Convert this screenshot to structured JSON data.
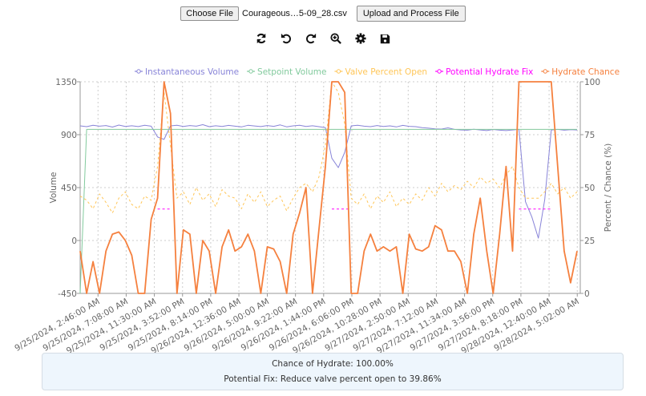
{
  "upload": {
    "choose_file_label": "Choose File",
    "file_name": "Courageous…5-09_28.csv",
    "upload_button_label": "Upload and Process File"
  },
  "toolbar": {
    "icons": [
      "refresh-icon",
      "undo-icon",
      "redo-icon",
      "zoom-in-icon",
      "settings-icon",
      "save-icon"
    ]
  },
  "info": {
    "chance_text": "Chance of Hydrate: 100.00%",
    "fix_text": "Potential Fix: Reduce valve percent open to 39.86%"
  },
  "chart_data": {
    "type": "line",
    "ylabel": "Volume",
    "y2label": "Percent / Chance (%)",
    "ylim": [
      -450,
      1350
    ],
    "y2lim": [
      0,
      100
    ],
    "yticks": [
      "1350",
      "900",
      "450",
      "0",
      "-450"
    ],
    "y2ticks": [
      "100",
      "75",
      "50",
      "25",
      "0"
    ],
    "xlim": [
      "2024-09-25T00:00",
      "2024-09-28T05:30"
    ],
    "xticks": [
      "9/25/2024, 2:46:00 AM",
      "9/25/2024, 7:08:00 AM",
      "9/25/2024, 11:30:00 AM",
      "9/25/2024, 3:52:00 PM",
      "9/25/2024, 8:14:00 PM",
      "9/26/2024, 12:36:00 AM",
      "9/26/2024, 5:00:00 AM",
      "9/26/2024, 9:22:00 AM",
      "9/26/2024, 1:44:00 PM",
      "9/26/2024, 6:06:00 PM",
      "9/26/2024, 10:28:00 PM",
      "9/27/2024, 2:50:00 AM",
      "9/27/2024, 7:12:00 AM",
      "9/27/2024, 11:34:00 AM",
      "9/27/2024, 3:56:00 PM",
      "9/27/2024, 8:18:00 PM",
      "9/28/2024, 12:40:00 AM",
      "9/28/2024, 5:02:00 AM"
    ],
    "grid": true,
    "legend_position": "top",
    "x": [
      "2024-09-25T00:00",
      "2024-09-25T01:00",
      "2024-09-25T02:00",
      "2024-09-25T03:00",
      "2024-09-25T04:00",
      "2024-09-25T05:00",
      "2024-09-25T06:00",
      "2024-09-25T07:00",
      "2024-09-25T08:00",
      "2024-09-25T09:00",
      "2024-09-25T10:00",
      "2024-09-25T11:00",
      "2024-09-25T12:00",
      "2024-09-25T13:00",
      "2024-09-25T14:00",
      "2024-09-25T15:00",
      "2024-09-25T16:00",
      "2024-09-25T17:00",
      "2024-09-25T18:00",
      "2024-09-25T19:00",
      "2024-09-25T20:00",
      "2024-09-25T21:00",
      "2024-09-25T22:00",
      "2024-09-25T23:00",
      "2024-09-26T00:00",
      "2024-09-26T01:00",
      "2024-09-26T02:00",
      "2024-09-26T03:00",
      "2024-09-26T04:00",
      "2024-09-26T05:00",
      "2024-09-26T06:00",
      "2024-09-26T07:00",
      "2024-09-26T08:00",
      "2024-09-26T09:00",
      "2024-09-26T10:00",
      "2024-09-26T11:00",
      "2024-09-26T12:00",
      "2024-09-26T13:00",
      "2024-09-26T14:00",
      "2024-09-26T15:00",
      "2024-09-26T16:00",
      "2024-09-26T17:00",
      "2024-09-26T18:00",
      "2024-09-26T19:00",
      "2024-09-26T20:00",
      "2024-09-26T21:00",
      "2024-09-26T22:00",
      "2024-09-26T23:00",
      "2024-09-27T00:00",
      "2024-09-27T01:00",
      "2024-09-27T02:00",
      "2024-09-27T03:00",
      "2024-09-27T04:00",
      "2024-09-27T05:00",
      "2024-09-27T06:00",
      "2024-09-27T07:00",
      "2024-09-27T08:00",
      "2024-09-27T09:00",
      "2024-09-27T10:00",
      "2024-09-27T11:00",
      "2024-09-27T12:00",
      "2024-09-27T13:00",
      "2024-09-27T14:00",
      "2024-09-27T15:00",
      "2024-09-27T16:00",
      "2024-09-27T17:00",
      "2024-09-27T18:00",
      "2024-09-27T19:00",
      "2024-09-27T20:00",
      "2024-09-27T21:00",
      "2024-09-27T22:00",
      "2024-09-27T23:00",
      "2024-09-28T00:00",
      "2024-09-28T01:00",
      "2024-09-28T02:00",
      "2024-09-28T03:00",
      "2024-09-28T04:00",
      "2024-09-28T05:00"
    ],
    "series": [
      {
        "name": "Instantaneous Volume",
        "axis": "left",
        "color": "#8884d8",
        "dash": false,
        "values": [
          975,
          968,
          980,
          972,
          978,
          965,
          982,
          970,
          976,
          969,
          980,
          972,
          880,
          860,
          975,
          980,
          970,
          978,
          972,
          985,
          968,
          976,
          970,
          979,
          972,
          966,
          980,
          974,
          969,
          978,
          971,
          983,
          967,
          975,
          980,
          970,
          976,
          968,
          960,
          700,
          620,
          750,
          975,
          980,
          972,
          968,
          978,
          970,
          975,
          966,
          979,
          971,
          968,
          960,
          955,
          950,
          948,
          958,
          945,
          940,
          938,
          946,
          940,
          935,
          944,
          938,
          935,
          940,
          945,
          330,
          200,
          20,
          350,
          940,
          945,
          938,
          942,
          940
        ]
      },
      {
        "name": "Setpoint Volume",
        "axis": "left",
        "color": "#82ca9d",
        "dash": false,
        "values": [
          -450,
          945,
          945,
          945,
          945,
          945,
          945,
          945,
          945,
          945,
          945,
          945,
          945,
          945,
          945,
          945,
          945,
          945,
          945,
          945,
          945,
          945,
          945,
          945,
          945,
          945,
          945,
          945,
          945,
          945,
          945,
          945,
          945,
          945,
          945,
          945,
          945,
          945,
          945,
          945,
          945,
          945,
          945,
          945,
          945,
          945,
          945,
          945,
          945,
          945,
          945,
          945,
          945,
          945,
          945,
          945,
          945,
          945,
          945,
          945,
          945,
          945,
          945,
          945,
          945,
          945,
          945,
          945,
          945,
          945,
          945,
          945,
          945,
          945,
          945,
          945,
          945,
          945
        ]
      },
      {
        "name": "Valve Percent Open",
        "axis": "right",
        "color": "#ffc658",
        "dash": true,
        "values": [
          46,
          44,
          40,
          47,
          43,
          38,
          45,
          48,
          42,
          40,
          46,
          44,
          60,
          95,
          70,
          45,
          48,
          42,
          50,
          44,
          47,
          41,
          49,
          46,
          45,
          40,
          47,
          43,
          48,
          41,
          44,
          46,
          39,
          45,
          50,
          52,
          48,
          55,
          70,
          100,
          95,
          80,
          45,
          42,
          47,
          40,
          46,
          43,
          48,
          41,
          45,
          42,
          47,
          44,
          50,
          46,
          52,
          48,
          51,
          49,
          53,
          50,
          55,
          52,
          54,
          50,
          56,
          60,
          50,
          45,
          45,
          45,
          48,
          52,
          47,
          50,
          45,
          48
        ]
      },
      {
        "name": "Potential Hydrate Fix",
        "axis": "right",
        "color": "#ff00ff",
        "dash": true,
        "values": [
          null,
          null,
          null,
          null,
          null,
          null,
          null,
          null,
          null,
          null,
          null,
          null,
          39.86,
          39.86,
          39.86,
          null,
          null,
          null,
          null,
          null,
          null,
          null,
          null,
          null,
          null,
          null,
          null,
          null,
          null,
          null,
          null,
          null,
          null,
          null,
          null,
          null,
          null,
          null,
          null,
          39.86,
          39.86,
          39.86,
          39.86,
          null,
          null,
          null,
          null,
          null,
          null,
          null,
          null,
          null,
          null,
          null,
          null,
          null,
          null,
          null,
          null,
          null,
          null,
          null,
          null,
          null,
          null,
          null,
          null,
          null,
          39.86,
          39.86,
          39.86,
          39.86,
          39.86,
          39.86,
          null,
          null,
          null,
          null
        ]
      },
      {
        "name": "Hydrate Chance",
        "axis": "right",
        "color": "#f5803e",
        "dash": false,
        "values": [
          20,
          0,
          15,
          0,
          20,
          28,
          29,
          25,
          18,
          0,
          0,
          35,
          45,
          100,
          85,
          0,
          30,
          28,
          0,
          25,
          20,
          0,
          22,
          30,
          20,
          22,
          28,
          20,
          0,
          22,
          21,
          15,
          0,
          28,
          38,
          50,
          0,
          30,
          60,
          100,
          100,
          95,
          0,
          0,
          20,
          28,
          20,
          22,
          20,
          22,
          0,
          28,
          21,
          20,
          22,
          32,
          30,
          20,
          20,
          15,
          0,
          28,
          45,
          20,
          0,
          28,
          60,
          20,
          100,
          100,
          100,
          100,
          100,
          100,
          60,
          20,
          5,
          20
        ]
      }
    ]
  }
}
